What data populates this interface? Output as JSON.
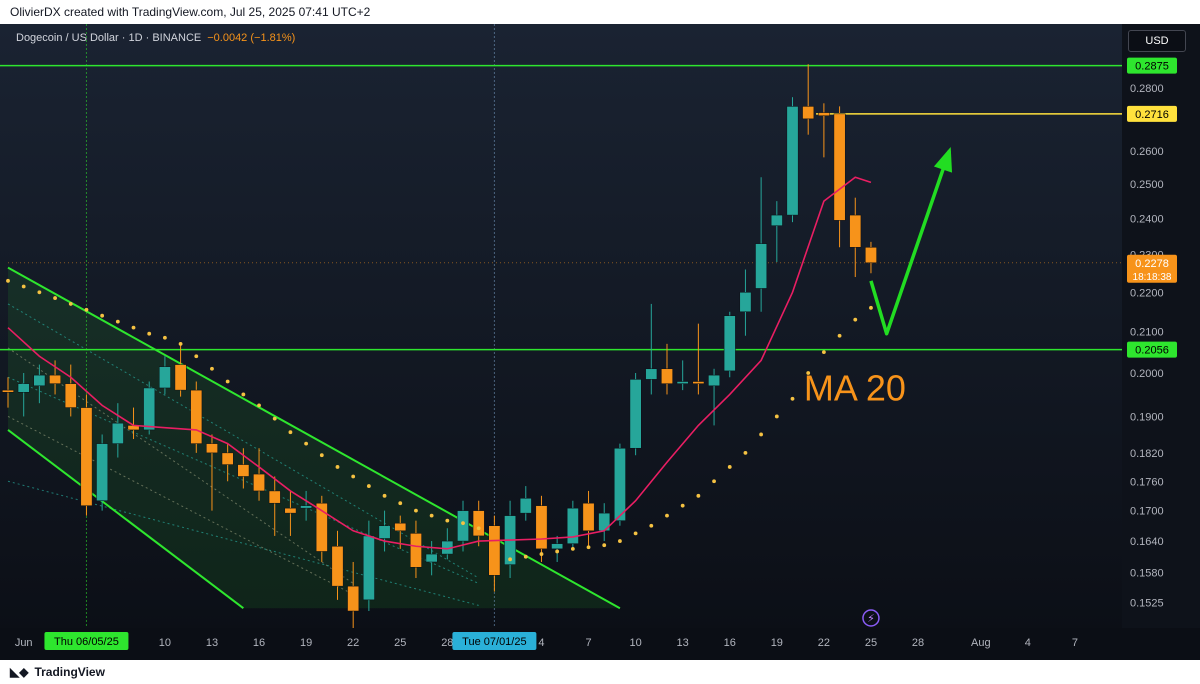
{
  "header": {
    "attribution": "OlivierDX created with TradingView.com, Jul 25, 2025 07:41 UTC+2"
  },
  "legend": {
    "symbol": "Dogecoin / US Dollar · 1D · BINANCE",
    "change": "−0.0042 (−1.81%)"
  },
  "currency_button": "USD",
  "footer": {
    "brand": "TradingView"
  },
  "colors": {
    "up": "#26a69a",
    "down": "#f7931a",
    "ma": "#e91e63",
    "psar": "#f5c242",
    "channel": "#2ee62e",
    "level_green": "#2ee62e",
    "level_yellow": "#ffe13d",
    "arrow": "#22dd22",
    "annotation": "#f7931a",
    "current_price_bg": "#f7931a"
  },
  "annotation": {
    "text": "MA 20"
  },
  "price_levels": [
    {
      "value": 0.2875,
      "label": "0.2875",
      "color": "#2ee62e"
    },
    {
      "value": 0.2716,
      "label": "0.2716",
      "color": "#ffe13d"
    },
    {
      "value": 0.2056,
      "label": "0.2056",
      "color": "#2ee62e"
    }
  ],
  "current_price": {
    "value": 0.2278,
    "label": "0.2278",
    "countdown": "18:18:38"
  },
  "x_markers": [
    {
      "date": "2025-06-05",
      "label": "Thu 06/05/25"
    },
    {
      "date": "2025-07-01",
      "label": "Tue 07/01/25"
    }
  ],
  "chart_data": {
    "type": "candlestick",
    "symbol": "Dogecoin / US Dollar",
    "interval": "1D",
    "exchange": "BINANCE",
    "y_axis": {
      "scale": "log",
      "range": [
        0.148,
        0.302
      ],
      "ticks": [
        0.28,
        0.26,
        0.25,
        0.24,
        0.23,
        0.22,
        0.21,
        0.2,
        0.19,
        0.182,
        0.176,
        0.17,
        0.164,
        0.158,
        0.1525
      ],
      "tick_labels": [
        "0.2800",
        "0.2600",
        "0.2500",
        "0.2400",
        "0.2300",
        "0.2200",
        "0.2100",
        "0.2000",
        "0.1900",
        "0.1820",
        "0.1760",
        "0.1700",
        "0.1640",
        "0.1580",
        "0.1525"
      ]
    },
    "x_axis": {
      "range": [
        "2025-05-31",
        "2025-08-10"
      ],
      "ticks": [
        {
          "date": "2025-06-01",
          "label": "Jun"
        },
        {
          "date": "2025-06-10",
          "label": "10"
        },
        {
          "date": "2025-06-13",
          "label": "13"
        },
        {
          "date": "2025-06-16",
          "label": "16"
        },
        {
          "date": "2025-06-19",
          "label": "19"
        },
        {
          "date": "2025-06-22",
          "label": "22"
        },
        {
          "date": "2025-06-25",
          "label": "25"
        },
        {
          "date": "2025-06-28",
          "label": "28"
        },
        {
          "date": "2025-07-04",
          "label": "4"
        },
        {
          "date": "2025-07-07",
          "label": "7"
        },
        {
          "date": "2025-07-10",
          "label": "10"
        },
        {
          "date": "2025-07-13",
          "label": "13"
        },
        {
          "date": "2025-07-16",
          "label": "16"
        },
        {
          "date": "2025-07-19",
          "label": "19"
        },
        {
          "date": "2025-07-22",
          "label": "22"
        },
        {
          "date": "2025-07-25",
          "label": "25"
        },
        {
          "date": "2025-07-28",
          "label": "28"
        },
        {
          "date": "2025-08-01",
          "label": "Aug"
        },
        {
          "date": "2025-08-04",
          "label": "4"
        },
        {
          "date": "2025-08-07",
          "label": "7"
        }
      ]
    },
    "candles": [
      {
        "d": "2025-05-31",
        "o": 0.196,
        "h": 0.199,
        "l": 0.192,
        "c": 0.1955
      },
      {
        "d": "2025-06-01",
        "o": 0.1955,
        "h": 0.2,
        "l": 0.19,
        "c": 0.1975
      },
      {
        "d": "2025-06-02",
        "o": 0.197,
        "h": 0.202,
        "l": 0.193,
        "c": 0.1995
      },
      {
        "d": "2025-06-03",
        "o": 0.1995,
        "h": 0.203,
        "l": 0.195,
        "c": 0.1975
      },
      {
        "d": "2025-06-04",
        "o": 0.1975,
        "h": 0.202,
        "l": 0.19,
        "c": 0.192
      },
      {
        "d": "2025-06-05",
        "o": 0.192,
        "h": 0.195,
        "l": 0.169,
        "c": 0.171
      },
      {
        "d": "2025-06-06",
        "o": 0.172,
        "h": 0.186,
        "l": 0.17,
        "c": 0.184
      },
      {
        "d": "2025-06-07",
        "o": 0.184,
        "h": 0.193,
        "l": 0.181,
        "c": 0.1885
      },
      {
        "d": "2025-06-08",
        "o": 0.188,
        "h": 0.192,
        "l": 0.185,
        "c": 0.187
      },
      {
        "d": "2025-06-09",
        "o": 0.187,
        "h": 0.198,
        "l": 0.186,
        "c": 0.1965
      },
      {
        "d": "2025-06-10",
        "o": 0.1965,
        "h": 0.204,
        "l": 0.195,
        "c": 0.2015
      },
      {
        "d": "2025-06-11",
        "o": 0.202,
        "h": 0.207,
        "l": 0.1945,
        "c": 0.196
      },
      {
        "d": "2025-06-12",
        "o": 0.196,
        "h": 0.198,
        "l": 0.182,
        "c": 0.184
      },
      {
        "d": "2025-06-13",
        "o": 0.184,
        "h": 0.186,
        "l": 0.17,
        "c": 0.182
      },
      {
        "d": "2025-06-14",
        "o": 0.182,
        "h": 0.184,
        "l": 0.176,
        "c": 0.1795
      },
      {
        "d": "2025-06-15",
        "o": 0.1795,
        "h": 0.183,
        "l": 0.1745,
        "c": 0.177
      },
      {
        "d": "2025-06-16",
        "o": 0.1775,
        "h": 0.183,
        "l": 0.172,
        "c": 0.174
      },
      {
        "d": "2025-06-17",
        "o": 0.174,
        "h": 0.177,
        "l": 0.165,
        "c": 0.1715
      },
      {
        "d": "2025-06-18",
        "o": 0.1705,
        "h": 0.174,
        "l": 0.165,
        "c": 0.1695
      },
      {
        "d": "2025-06-19",
        "o": 0.1705,
        "h": 0.174,
        "l": 0.168,
        "c": 0.171
      },
      {
        "d": "2025-06-20",
        "o": 0.1715,
        "h": 0.173,
        "l": 0.16,
        "c": 0.162
      },
      {
        "d": "2025-06-21",
        "o": 0.163,
        "h": 0.166,
        "l": 0.153,
        "c": 0.1555
      },
      {
        "d": "2025-06-22",
        "o": 0.1555,
        "h": 0.16,
        "l": 0.148,
        "c": 0.151
      },
      {
        "d": "2025-06-23",
        "o": 0.153,
        "h": 0.168,
        "l": 0.151,
        "c": 0.165
      },
      {
        "d": "2025-06-24",
        "o": 0.1645,
        "h": 0.17,
        "l": 0.162,
        "c": 0.167
      },
      {
        "d": "2025-06-25",
        "o": 0.1675,
        "h": 0.169,
        "l": 0.1625,
        "c": 0.166
      },
      {
        "d": "2025-06-26",
        "o": 0.1655,
        "h": 0.168,
        "l": 0.157,
        "c": 0.159
      },
      {
        "d": "2025-06-27",
        "o": 0.16,
        "h": 0.164,
        "l": 0.1575,
        "c": 0.1615
      },
      {
        "d": "2025-06-28",
        "o": 0.1615,
        "h": 0.1665,
        "l": 0.1605,
        "c": 0.164
      },
      {
        "d": "2025-06-29",
        "o": 0.164,
        "h": 0.172,
        "l": 0.162,
        "c": 0.17
      },
      {
        "d": "2025-06-30",
        "o": 0.17,
        "h": 0.172,
        "l": 0.163,
        "c": 0.165
      },
      {
        "d": "2025-07-01",
        "o": 0.167,
        "h": 0.169,
        "l": 0.1545,
        "c": 0.1575
      },
      {
        "d": "2025-07-02",
        "o": 0.1595,
        "h": 0.172,
        "l": 0.157,
        "c": 0.169
      },
      {
        "d": "2025-07-03",
        "o": 0.1695,
        "h": 0.175,
        "l": 0.168,
        "c": 0.1725
      },
      {
        "d": "2025-07-04",
        "o": 0.171,
        "h": 0.173,
        "l": 0.16,
        "c": 0.1625
      },
      {
        "d": "2025-07-05",
        "o": 0.1625,
        "h": 0.165,
        "l": 0.16,
        "c": 0.1635
      },
      {
        "d": "2025-07-06",
        "o": 0.1635,
        "h": 0.172,
        "l": 0.1625,
        "c": 0.1705
      },
      {
        "d": "2025-07-07",
        "o": 0.1715,
        "h": 0.174,
        "l": 0.163,
        "c": 0.166
      },
      {
        "d": "2025-07-08",
        "o": 0.166,
        "h": 0.1715,
        "l": 0.164,
        "c": 0.1695
      },
      {
        "d": "2025-07-09",
        "o": 0.168,
        "h": 0.184,
        "l": 0.167,
        "c": 0.183
      },
      {
        "d": "2025-07-10",
        "o": 0.183,
        "h": 0.2,
        "l": 0.1815,
        "c": 0.1985
      },
      {
        "d": "2025-07-11",
        "o": 0.1985,
        "h": 0.217,
        "l": 0.195,
        "c": 0.201
      },
      {
        "d": "2025-07-12",
        "o": 0.201,
        "h": 0.207,
        "l": 0.195,
        "c": 0.1975
      },
      {
        "d": "2025-07-13",
        "o": 0.1975,
        "h": 0.203,
        "l": 0.196,
        "c": 0.198
      },
      {
        "d": "2025-07-14",
        "o": 0.198,
        "h": 0.212,
        "l": 0.195,
        "c": 0.1975
      },
      {
        "d": "2025-07-15",
        "o": 0.197,
        "h": 0.201,
        "l": 0.188,
        "c": 0.1995
      },
      {
        "d": "2025-07-16",
        "o": 0.2005,
        "h": 0.215,
        "l": 0.199,
        "c": 0.214
      },
      {
        "d": "2025-07-17",
        "o": 0.215,
        "h": 0.226,
        "l": 0.209,
        "c": 0.22
      },
      {
        "d": "2025-07-18",
        "o": 0.221,
        "h": 0.252,
        "l": 0.215,
        "c": 0.233
      },
      {
        "d": "2025-07-19",
        "o": 0.238,
        "h": 0.245,
        "l": 0.228,
        "c": 0.241
      },
      {
        "d": "2025-07-20",
        "o": 0.241,
        "h": 0.277,
        "l": 0.239,
        "c": 0.274
      },
      {
        "d": "2025-07-21",
        "o": 0.274,
        "h": 0.288,
        "l": 0.265,
        "c": 0.27
      },
      {
        "d": "2025-07-22",
        "o": 0.272,
        "h": 0.275,
        "l": 0.258,
        "c": 0.271
      },
      {
        "d": "2025-07-23",
        "o": 0.2716,
        "h": 0.274,
        "l": 0.232,
        "c": 0.2395
      },
      {
        "d": "2025-07-24",
        "o": 0.241,
        "h": 0.246,
        "l": 0.224,
        "c": 0.232
      },
      {
        "d": "2025-07-25",
        "o": 0.232,
        "h": 0.2335,
        "l": 0.225,
        "c": 0.2278
      }
    ],
    "ma20": {
      "name": "MA 20",
      "points": [
        [
          "2025-05-31",
          0.211
        ],
        [
          "2025-06-02",
          0.204
        ],
        [
          "2025-06-04",
          0.199
        ],
        [
          "2025-06-06",
          0.1925
        ],
        [
          "2025-06-08",
          0.188
        ],
        [
          "2025-06-10",
          0.1875
        ],
        [
          "2025-06-12",
          0.187
        ],
        [
          "2025-06-14",
          0.184
        ],
        [
          "2025-06-16",
          0.179
        ],
        [
          "2025-06-18",
          0.174
        ],
        [
          "2025-06-20",
          0.17
        ],
        [
          "2025-06-22",
          0.166
        ],
        [
          "2025-06-24",
          0.164
        ],
        [
          "2025-06-26",
          0.163
        ],
        [
          "2025-06-28",
          0.1625
        ],
        [
          "2025-06-30",
          0.164
        ],
        [
          "2025-07-02",
          0.1642
        ],
        [
          "2025-07-04",
          0.1644
        ],
        [
          "2025-07-06",
          0.1648
        ],
        [
          "2025-07-08",
          0.166
        ],
        [
          "2025-07-10",
          0.172
        ],
        [
          "2025-07-12",
          0.18
        ],
        [
          "2025-07-14",
          0.188
        ],
        [
          "2025-07-16",
          0.195
        ],
        [
          "2025-07-18",
          0.203
        ],
        [
          "2025-07-20",
          0.22
        ],
        [
          "2025-07-22",
          0.245
        ],
        [
          "2025-07-24",
          0.252
        ],
        [
          "2025-07-25",
          0.2505
        ]
      ]
    },
    "parabolic_sar": [
      [
        "2025-05-31",
        0.223
      ],
      [
        "2025-06-01",
        0.2215
      ],
      [
        "2025-06-02",
        0.22
      ],
      [
        "2025-06-03",
        0.2185
      ],
      [
        "2025-06-04",
        0.217
      ],
      [
        "2025-06-05",
        0.2155
      ],
      [
        "2025-06-06",
        0.214
      ],
      [
        "2025-06-07",
        0.2125
      ],
      [
        "2025-06-08",
        0.211
      ],
      [
        "2025-06-09",
        0.2095
      ],
      [
        "2025-06-10",
        0.2085
      ],
      [
        "2025-06-11",
        0.207
      ],
      [
        "2025-06-12",
        0.204
      ],
      [
        "2025-06-13",
        0.201
      ],
      [
        "2025-06-14",
        0.198
      ],
      [
        "2025-06-15",
        0.195
      ],
      [
        "2025-06-16",
        0.1925
      ],
      [
        "2025-06-17",
        0.1895
      ],
      [
        "2025-06-18",
        0.1865
      ],
      [
        "2025-06-19",
        0.184
      ],
      [
        "2025-06-20",
        0.1815
      ],
      [
        "2025-06-21",
        0.179
      ],
      [
        "2025-06-22",
        0.177
      ],
      [
        "2025-06-23",
        0.175
      ],
      [
        "2025-06-24",
        0.173
      ],
      [
        "2025-06-25",
        0.1715
      ],
      [
        "2025-06-26",
        0.17
      ],
      [
        "2025-06-27",
        0.169
      ],
      [
        "2025-06-28",
        0.168
      ],
      [
        "2025-06-29",
        0.1675
      ],
      [
        "2025-06-30",
        0.1665
      ],
      [
        "2025-07-02",
        0.1605
      ],
      [
        "2025-07-03",
        0.161
      ],
      [
        "2025-07-04",
        0.1615
      ],
      [
        "2025-07-05",
        0.162
      ],
      [
        "2025-07-06",
        0.1625
      ],
      [
        "2025-07-07",
        0.1628
      ],
      [
        "2025-07-08",
        0.1632
      ],
      [
        "2025-07-09",
        0.164
      ],
      [
        "2025-07-10",
        0.1655
      ],
      [
        "2025-07-11",
        0.167
      ],
      [
        "2025-07-12",
        0.169
      ],
      [
        "2025-07-13",
        0.171
      ],
      [
        "2025-07-14",
        0.173
      ],
      [
        "2025-07-15",
        0.176
      ],
      [
        "2025-07-16",
        0.179
      ],
      [
        "2025-07-17",
        0.182
      ],
      [
        "2025-07-18",
        0.186
      ],
      [
        "2025-07-19",
        0.19
      ],
      [
        "2025-07-20",
        0.194
      ],
      [
        "2025-07-21",
        0.2
      ],
      [
        "2025-07-22",
        0.205
      ],
      [
        "2025-07-23",
        0.209
      ],
      [
        "2025-07-24",
        0.213
      ],
      [
        "2025-07-25",
        0.216
      ]
    ],
    "channel": {
      "upper": [
        [
          "2025-05-31",
          0.2265
        ],
        [
          "2025-07-09",
          0.1515
        ]
      ],
      "lower": [
        [
          "2025-05-31",
          0.187
        ],
        [
          "2025-06-15",
          0.1515
        ]
      ],
      "mid_lines": [
        [
          [
            "2025-05-31",
            0.217
          ],
          [
            "2025-06-30",
            0.157
          ]
        ],
        [
          [
            "2025-05-31",
            0.206
          ],
          [
            "2025-06-22",
            0.156
          ]
        ],
        [
          [
            "2025-05-31",
            0.199
          ],
          [
            "2025-06-30",
            0.156
          ]
        ],
        [
          [
            "2025-05-31",
            0.19
          ],
          [
            "2025-06-22",
            0.154
          ]
        ],
        [
          [
            "2025-05-31",
            0.176
          ],
          [
            "2025-06-30",
            0.152
          ]
        ]
      ]
    },
    "projection_arrow": [
      [
        "2025-07-25",
        0.223
      ],
      [
        "2025-07-26",
        0.2095
      ],
      [
        "2025-07-30",
        0.26
      ]
    ]
  }
}
